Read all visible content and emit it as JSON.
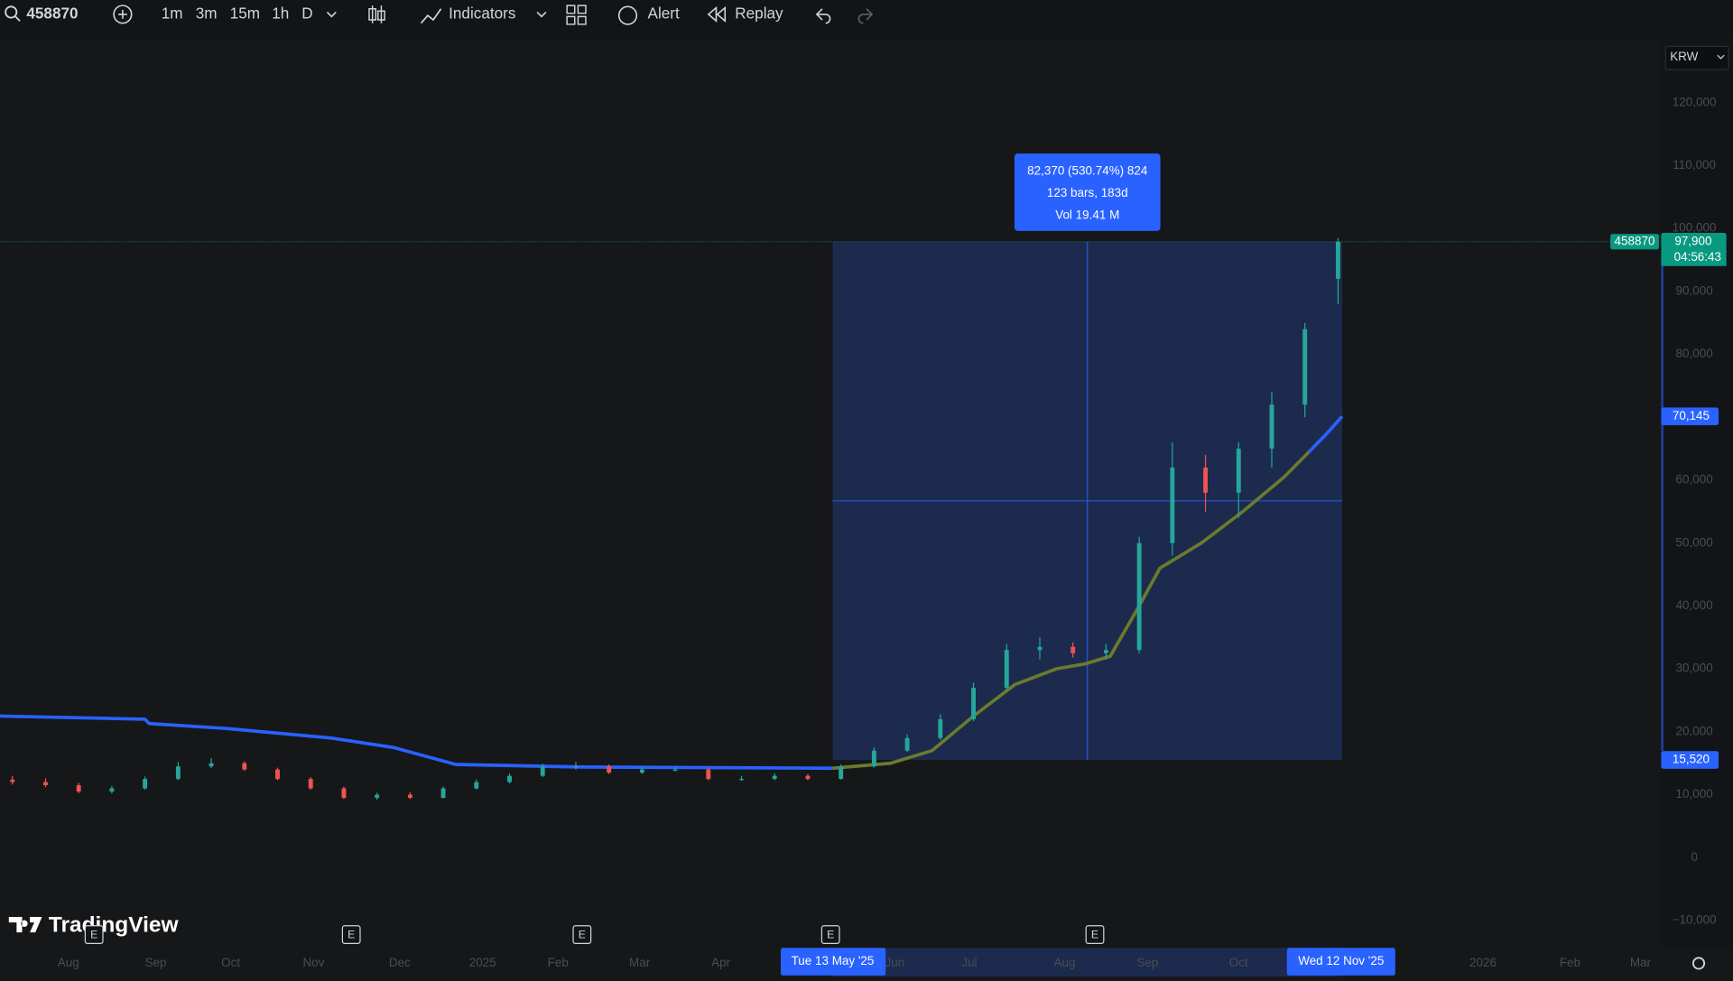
{
  "toolbar": {
    "symbol": "458870",
    "intervals": [
      "1m",
      "3m",
      "15m",
      "1h",
      "D"
    ],
    "indicators": "Indicators",
    "alert": "Alert",
    "replay": "Replay"
  },
  "chart_data": {
    "type": "candlestick",
    "currency": "KRW",
    "brand": "TradingView",
    "x": [
      3,
      11,
      19,
      27,
      35,
      43,
      51,
      59,
      67,
      75,
      83,
      91,
      99,
      107,
      115,
      123,
      131,
      139,
      147,
      155,
      163,
      171,
      179,
      187,
      195,
      203,
      211,
      219,
      227,
      235,
      243,
      251,
      259,
      267,
      275,
      283,
      291,
      299,
      307,
      315,
      323
    ],
    "open": [
      12400,
      12000,
      11500,
      10500,
      11000,
      12500,
      14500,
      15000,
      14000,
      12500,
      11000,
      9500,
      10000,
      9500,
      11000,
      12000,
      13000,
      14500,
      14500,
      13500,
      14000,
      14000,
      12500,
      12500,
      13000,
      12500,
      14500,
      17000,
      19000,
      22000,
      27000,
      33000,
      33500,
      32500,
      33000,
      50000,
      62000,
      58000,
      65000,
      72000,
      92000
    ],
    "high": [
      13000,
      12600,
      11900,
      11400,
      12900,
      15200,
      15800,
      15300,
      14300,
      12800,
      11300,
      10300,
      10400,
      11300,
      12400,
      13400,
      14900,
      15200,
      14800,
      14400,
      14500,
      14300,
      13000,
      13400,
      13300,
      14800,
      17500,
      19600,
      22800,
      27800,
      34000,
      35000,
      34200,
      34000,
      51000,
      66000,
      64000,
      66000,
      74000,
      85000,
      98500
    ],
    "low": [
      11600,
      11200,
      10200,
      10200,
      10800,
      12300,
      14200,
      13800,
      12300,
      10800,
      9300,
      9200,
      9300,
      9400,
      10800,
      11800,
      12800,
      14000,
      13300,
      13300,
      13700,
      12300,
      12200,
      12300,
      12300,
      12400,
      14300,
      16800,
      18700,
      21700,
      26500,
      31500,
      31800,
      31500,
      32500,
      48000,
      55000,
      54000,
      62000,
      70000,
      88000
    ],
    "close": [
      12000,
      11500,
      10500,
      11000,
      12500,
      14500,
      15000,
      14000,
      12500,
      11000,
      9500,
      10000,
      9500,
      11000,
      12000,
      13000,
      14500,
      14500,
      13500,
      14000,
      14000,
      12500,
      12500,
      13000,
      12500,
      14500,
      17000,
      19000,
      22000,
      27000,
      33000,
      33500,
      32500,
      33000,
      50000,
      62000,
      58000,
      65000,
      72000,
      84000,
      97900
    ],
    "up_color": "#26a69a",
    "down_color": "#ef5350",
    "series": [
      {
        "color": "#2962ff",
        "x": [
          0,
          35,
          36,
          55,
          75,
          80,
          95,
          110,
          140,
          201
        ],
        "values": [
          22500,
          22000,
          21300,
          20500,
          19300,
          19000,
          17500,
          14800,
          14400,
          14200
        ]
      },
      {
        "color": "#6b7a2e",
        "x": [
          201,
          215,
          225,
          235,
          245,
          255,
          262,
          268,
          275,
          280,
          290,
          300,
          310,
          316
        ],
        "values": [
          14200,
          15000,
          17000,
          22500,
          27500,
          30000,
          30800,
          32000,
          40000,
          46000,
          50000,
          55000,
          60500,
          64500
        ]
      },
      {
        "color": "#2962ff",
        "x": [
          316,
          320,
          324
        ],
        "values": [
          64500,
          67200,
          70145
        ]
      }
    ],
    "xlim": [
      0,
      401
    ],
    "ylim": [
      -14000,
      130000
    ],
    "yticks": [
      {
        "value": -10000,
        "label": "−10,000"
      },
      0,
      {
        "value": 10000,
        "label": "10,000"
      },
      {
        "value": 20000,
        "label": "20,000"
      },
      {
        "value": 30000,
        "label": "30,000"
      },
      {
        "value": 40000,
        "label": "40,000"
      },
      {
        "value": 50000,
        "label": "50,000"
      },
      {
        "value": 60000,
        "label": "60,000"
      },
      {
        "value": 70000,
        "label": "70,000"
      },
      {
        "value": 80000,
        "label": "80,000"
      },
      {
        "value": 90000,
        "label": "90,000"
      },
      {
        "value": 100000,
        "label": "100,000"
      },
      {
        "value": 110000,
        "label": "110,000"
      },
      {
        "value": 120000,
        "label": "120,000"
      }
    ],
    "xticks": [
      {
        "value": 16.5,
        "label": "Aug"
      },
      {
        "value": 37.6,
        "label": "Sep"
      },
      {
        "value": 55.7,
        "label": "Oct"
      },
      {
        "value": 75.7,
        "label": "Nov"
      },
      {
        "value": 96.5,
        "label": "Dec"
      },
      {
        "value": 116.5,
        "label": "2025"
      },
      {
        "value": 134.7,
        "label": "Feb"
      },
      {
        "value": 154.4,
        "label": "Mar"
      },
      {
        "value": 174,
        "label": "Apr"
      },
      {
        "value": 216,
        "label": "Jun"
      },
      {
        "value": 234,
        "label": "Jul"
      },
      {
        "value": 257,
        "label": "Aug"
      },
      {
        "value": 277,
        "label": "Sep"
      },
      {
        "value": 299,
        "label": "Oct"
      },
      {
        "value": 358,
        "label": "2026"
      },
      {
        "value": 379,
        "label": "Feb"
      },
      {
        "value": 396,
        "label": "Mar"
      }
    ],
    "earnings": [
      22.7,
      84.8,
      140.5,
      200.5,
      264.3
    ],
    "earnings_label": "E",
    "measure": {
      "from_x": 201,
      "to_x": 324,
      "from_price": 15520,
      "to_price": 97900,
      "from_date": "Tue 13 May '25",
      "to_date": "Wed 12 Nov '25",
      "line1": "82,370 (530.74%) 824",
      "line2": "123 bars, 183d",
      "line3": "Vol 19.41 M"
    },
    "last_price": {
      "symbol": "458870",
      "value": 97900,
      "label": "97,900",
      "countdown": "04:56:43"
    },
    "ma_label": {
      "value": 70145,
      "label": "70,145"
    },
    "low_label": {
      "value": 15520,
      "label": "15,520"
    }
  }
}
